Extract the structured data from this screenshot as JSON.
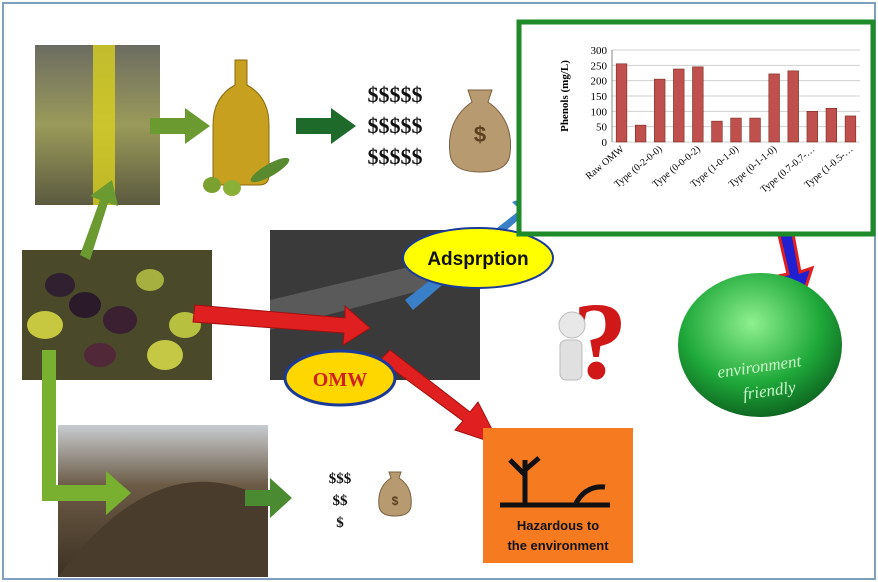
{
  "top_revenue": [
    "$$$$$",
    "$$$$$",
    "$$$$$"
  ],
  "bottom_revenue": [
    "$$$",
    "$$",
    "$"
  ],
  "labels": {
    "adsorption": "Adsprption",
    "omw": "OMW",
    "environment": "environment",
    "friendly": "friendly",
    "hazard_line1": "Hazardous to",
    "hazard_line2": "the environment"
  },
  "chart_data": {
    "type": "bar",
    "y_label": "Phenols (mg/L)",
    "categories": [
      "Raw OMW",
      null,
      "Type (0-2-0-0)",
      null,
      "Type (0-0-0-2)",
      null,
      "Type (1-0-1-0)",
      null,
      "Type (0-1-1-0)",
      null,
      "Type (0.7-0.7-…",
      null,
      "Type (1-0.5-…"
    ],
    "values": [
      255,
      55,
      205,
      238,
      245,
      68,
      78,
      78,
      222,
      232,
      100,
      110,
      85
    ],
    "color": "#c0504d",
    "ylim": [
      0,
      300
    ],
    "yticks": [
      0,
      50,
      100,
      150,
      200,
      250,
      300
    ],
    "grid": true
  }
}
